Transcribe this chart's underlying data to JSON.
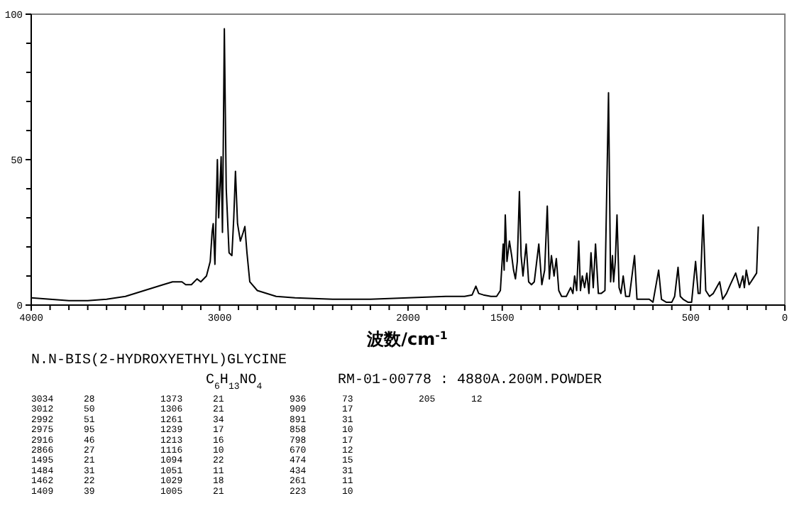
{
  "chart_data": {
    "type": "line",
    "xlabel": "波数/cm$^{-1}$",
    "xlim": [
      4000,
      0
    ],
    "ylim": [
      0,
      100
    ],
    "xticks": [
      4000,
      {
        "value": 3900,
        "label": null
      },
      {
        "value": 3800,
        "label": null
      },
      {
        "value": 3700,
        "label": null
      },
      {
        "value": 3600,
        "label": null
      },
      {
        "value": 3500,
        "label": null
      },
      {
        "value": 3400,
        "label": null
      },
      {
        "value": 3300,
        "label": null
      },
      {
        "value": 3200,
        "label": null
      },
      {
        "value": 3100,
        "label": null
      },
      3000,
      {
        "value": 2900,
        "label": null
      },
      {
        "value": 2800,
        "label": null
      },
      {
        "value": 2700,
        "label": null
      },
      {
        "value": 2600,
        "label": null
      },
      {
        "value": 2500,
        "label": null
      },
      {
        "value": 2400,
        "label": null
      },
      {
        "value": 2300,
        "label": null
      },
      {
        "value": 2200,
        "label": null
      },
      {
        "value": 2100,
        "label": null
      },
      2000,
      {
        "value": 1900,
        "label": null
      },
      {
        "value": 1800,
        "label": null
      },
      {
        "value": 1700,
        "label": null
      },
      {
        "value": 1600,
        "label": null
      },
      1500,
      {
        "value": 1400,
        "label": null
      },
      {
        "value": 1300,
        "label": null
      },
      {
        "value": 1200,
        "label": null
      },
      {
        "value": 1100,
        "label": null
      },
      {
        "value": 1000,
        "label": null
      },
      {
        "value": 900,
        "label": null
      },
      {
        "value": 800,
        "label": null
      },
      {
        "value": 700,
        "label": null
      },
      {
        "value": 600,
        "label": null
      },
      500,
      {
        "value": 400,
        "label": null
      },
      {
        "value": 300,
        "label": null
      },
      {
        "value": 200,
        "label": null
      },
      {
        "value": 100,
        "label": null
      },
      0
    ],
    "yticks": [
      0,
      {
        "value": 10,
        "label": null
      },
      {
        "value": 20,
        "label": null
      },
      {
        "value": 30,
        "label": null
      },
      {
        "value": 40,
        "label": null
      },
      50,
      {
        "value": 60,
        "label": null
      },
      {
        "value": 70,
        "label": null
      },
      {
        "value": 80,
        "label": null
      },
      {
        "value": 90,
        "label": null
      },
      100
    ],
    "grid": false,
    "marker": "none",
    "line_style": "solid",
    "series": [
      {
        "color": "#000000",
        "x": [
          4000,
          3900,
          3800,
          3700,
          3600,
          3500,
          3400,
          3300,
          3250,
          3200,
          3180,
          3150,
          3120,
          3100,
          3070,
          3050,
          3040,
          3034,
          3025,
          3012,
          3005,
          2992,
          2985,
          2975,
          2965,
          2950,
          2935,
          2925,
          2916,
          2905,
          2890,
          2875,
          2866,
          2855,
          2840,
          2800,
          2700,
          2600,
          2400,
          2200,
          2000,
          1800,
          1700,
          1660,
          1640,
          1625,
          1600,
          1560,
          1530,
          1510,
          1495,
          1490,
          1484,
          1475,
          1462,
          1450,
          1440,
          1430,
          1420,
          1409,
          1400,
          1390,
          1373,
          1360,
          1345,
          1330,
          1306,
          1290,
          1275,
          1261,
          1250,
          1239,
          1225,
          1213,
          1200,
          1185,
          1160,
          1137,
          1125,
          1116,
          1105,
          1094,
          1085,
          1075,
          1063,
          1051,
          1040,
          1029,
          1017,
          1005,
          990,
          975,
          955,
          936,
          925,
          915,
          909,
          900,
          891,
          880,
          870,
          858,
          845,
          825,
          798,
          785,
          760,
          720,
          700,
          670,
          655,
          630,
          600,
          585,
          567,
          555,
          540,
          515,
          495,
          474,
          460,
          450,
          434,
          420,
          400,
          380,
          346,
          330,
          310,
          290,
          261,
          240,
          223,
          215,
          205,
          190,
          170,
          150,
          141
        ],
        "values": [
          2.5,
          2,
          1.5,
          1.5,
          2,
          3,
          5,
          7,
          8,
          8,
          7,
          7,
          9,
          8,
          10,
          15,
          25,
          28,
          14,
          50,
          30,
          51,
          25,
          95,
          40,
          18,
          17,
          30,
          46,
          28,
          22,
          25,
          27,
          18,
          8,
          5,
          3,
          2.5,
          2,
          2,
          2.5,
          3,
          3,
          3.5,
          6.5,
          4,
          3.5,
          3,
          3,
          5,
          21,
          12,
          31,
          15,
          22,
          17,
          12,
          9,
          15,
          39,
          17,
          10,
          21,
          8,
          7,
          8,
          21,
          7,
          12,
          34,
          9,
          17,
          10,
          16,
          5,
          3,
          3,
          6,
          4,
          10,
          5,
          22,
          5,
          10,
          6,
          11,
          4,
          18,
          6,
          21,
          4,
          4,
          5,
          73,
          8,
          17,
          8,
          15,
          31,
          6,
          4,
          10,
          3,
          3,
          17,
          2,
          2,
          2,
          1,
          12,
          2,
          1,
          1,
          3,
          13,
          3,
          2,
          1,
          1,
          15,
          4,
          4,
          31,
          5,
          3,
          4,
          8,
          2,
          4,
          7,
          11,
          6,
          10,
          6,
          12,
          7,
          9,
          11,
          27
        ]
      }
    ],
    "annotations": [
      "N.N-BIS(2-HYDROXYETHYL)GLYCINE",
      "C$_{6}$H$_{13}$NO$_{4}$",
      "RM-01-00778 : 4880A.200M.POWDER",
      "3034 28",
      "3012 50",
      "2992 51",
      "2975 95",
      "2916 46",
      "2866 27",
      "1495 21",
      "1484 31",
      "1462 22",
      "1409 39",
      "1373 21",
      "1306 21",
      "1261 34",
      "1239 17",
      "1213 16",
      "1116 10",
      "1094 22",
      "1051 11",
      "1029 18",
      "1005 21",
      "936 73",
      "909 17",
      "891 31",
      "858 10",
      "798 17",
      "670 12",
      "474 15",
      "434 31",
      "261 11",
      "223 10",
      "205 12"
    ]
  }
}
